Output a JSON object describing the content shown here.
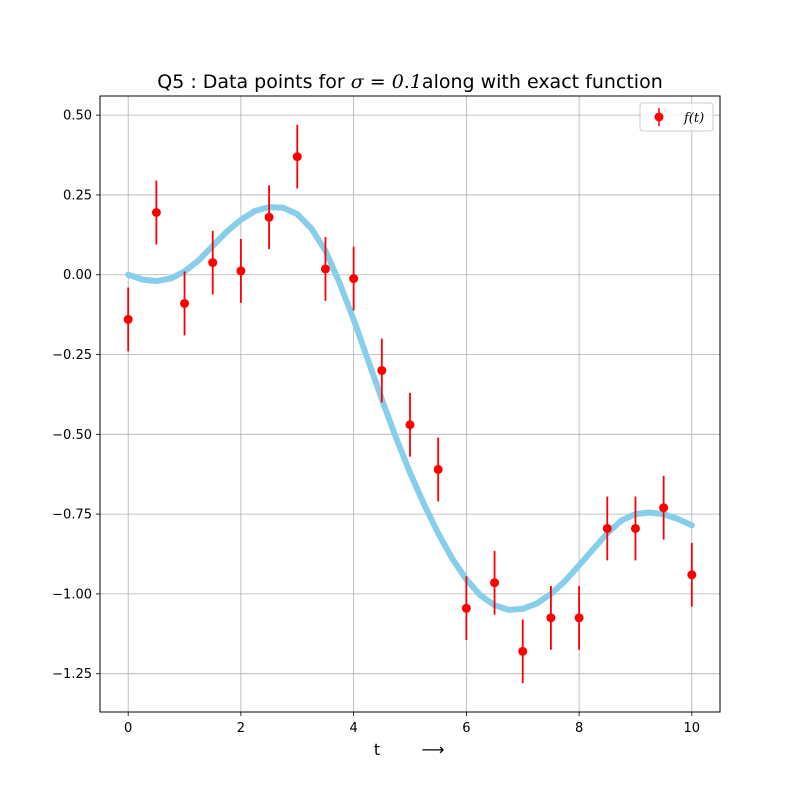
{
  "chart_data": {
    "type": "scatter",
    "title": {
      "prefix": "Q5 : Data points for ",
      "math": "σ = 0.1",
      "suffix": "along with exact function"
    },
    "xlabel": "t",
    "xlabel_arrow": "⟶",
    "ylabel": "",
    "xlim": [
      -0.5,
      10.5
    ],
    "ylim": [
      -1.37,
      0.56
    ],
    "xticks": [
      0,
      2,
      4,
      6,
      8,
      10
    ],
    "xtick_labels": [
      "0",
      "2",
      "4",
      "6",
      "8",
      "10"
    ],
    "yticks": [
      0.5,
      0.25,
      0.0,
      -0.25,
      -0.5,
      -0.75,
      -1.0,
      -1.25
    ],
    "ytick_labels": [
      "0.50",
      "0.25",
      "0.00",
      "−0.25",
      "−0.50",
      "−0.75",
      "−1.00",
      "−1.25"
    ],
    "grid": true,
    "legend": {
      "position": "top-right",
      "entries": [
        "f(t)"
      ]
    },
    "series": [
      {
        "name": "f(t)",
        "kind": "errorbar",
        "color": "#ff0000",
        "error": 0.1,
        "x": [
          0,
          0.5,
          1,
          1.5,
          2,
          2.5,
          3,
          3.5,
          4,
          4.5,
          5,
          5.5,
          6,
          6.5,
          7,
          7.5,
          8,
          8.5,
          9,
          9.5,
          10
        ],
        "y": [
          -0.14,
          0.195,
          -0.09,
          0.038,
          0.012,
          0.18,
          0.37,
          0.018,
          -0.012,
          -0.3,
          -0.47,
          -0.61,
          -1.045,
          -0.965,
          -1.18,
          -1.075,
          -1.075,
          -0.795,
          -0.795,
          -0.73,
          -0.94
        ]
      },
      {
        "kind": "line",
        "color": "#87ceeb",
        "x": [
          0,
          0.25,
          0.5,
          0.75,
          1,
          1.25,
          1.5,
          1.75,
          2,
          2.25,
          2.5,
          2.75,
          3,
          3.25,
          3.5,
          3.75,
          4,
          4.25,
          4.5,
          4.75,
          5,
          5.25,
          5.5,
          5.75,
          6,
          6.25,
          6.5,
          6.75,
          7,
          7.25,
          7.5,
          7.75,
          8,
          8.25,
          8.5,
          8.75,
          9,
          9.25,
          9.5,
          9.75,
          10
        ],
        "y": [
          0.0,
          -0.015,
          -0.02,
          -0.012,
          0.01,
          0.045,
          0.09,
          0.135,
          0.172,
          0.2,
          0.212,
          0.21,
          0.19,
          0.145,
          0.075,
          -0.025,
          -0.14,
          -0.265,
          -0.39,
          -0.51,
          -0.62,
          -0.72,
          -0.81,
          -0.89,
          -0.955,
          -1.005,
          -1.035,
          -1.05,
          -1.047,
          -1.03,
          -1.0,
          -0.96,
          -0.91,
          -0.86,
          -0.81,
          -0.77,
          -0.75,
          -0.745,
          -0.75,
          -0.765,
          -0.785
        ]
      }
    ]
  }
}
